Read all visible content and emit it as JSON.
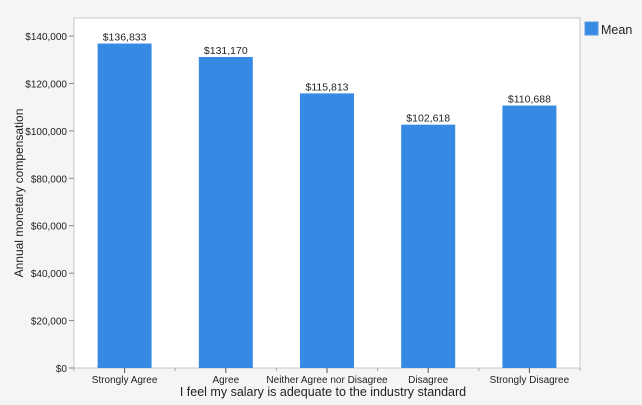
{
  "chart_data": {
    "type": "bar",
    "title": "",
    "xlabel": "I feel my salary is adequate to the industry standard",
    "ylabel": "Annual monetary compensation",
    "categories": [
      "Strongly Agree",
      "Agree",
      "Neither Agree nor Disagree",
      "Disagree",
      "Strongly Disagree"
    ],
    "series": [
      {
        "name": "Mean",
        "values": [
          136833,
          131170,
          115813,
          102618,
          110688
        ],
        "color": "#368ae4"
      }
    ],
    "data_labels": [
      "$136,833",
      "$131,170",
      "$115,813",
      "$102,618",
      "$110,688"
    ],
    "yticks": [
      0,
      20000,
      40000,
      60000,
      80000,
      100000,
      120000,
      140000
    ],
    "ytick_labels": [
      "$0",
      "$20,000",
      "$40,000",
      "$60,000",
      "$80,000",
      "$100,000",
      "$120,000",
      "$140,000"
    ],
    "ylim": [
      0,
      147600
    ],
    "grid": false,
    "legend": {
      "position": "top-right",
      "entries": [
        "Mean"
      ]
    }
  }
}
